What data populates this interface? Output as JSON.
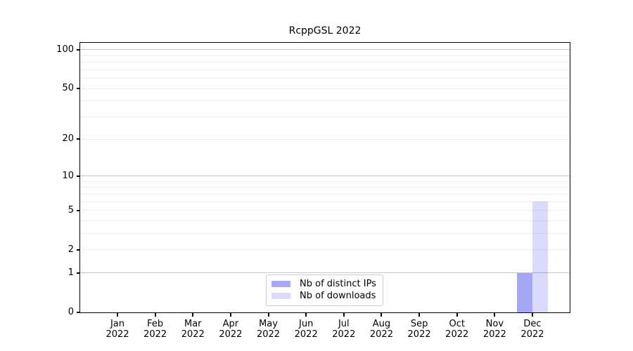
{
  "title": "RcppGSL 2022",
  "chart_data": {
    "type": "bar",
    "title": "RcppGSL 2022",
    "categories": [
      "Jan",
      "Feb",
      "Mar",
      "Apr",
      "May",
      "Jun",
      "Jul",
      "Aug",
      "Sep",
      "Oct",
      "Nov",
      "Dec"
    ],
    "year": "2022",
    "series": [
      {
        "name": "Nb of distinct IPs",
        "fill": "rgba(20,20,240,0.38)",
        "values": [
          0,
          0,
          0,
          0,
          0,
          0,
          0,
          0,
          0,
          0,
          0,
          1
        ]
      },
      {
        "name": "Nb of downloads",
        "fill": "rgba(20,20,240,0.155)",
        "values": [
          0,
          0,
          0,
          0,
          0,
          0,
          0,
          0,
          0,
          0,
          0,
          6
        ]
      }
    ],
    "yscale": "log1p",
    "ylim": [
      0,
      113
    ],
    "yticks": [
      0,
      1,
      2,
      5,
      10,
      20,
      50,
      100
    ],
    "major_gridlines": [
      1,
      10,
      100
    ],
    "minor_gridlines": [
      2,
      3,
      4,
      5,
      6,
      7,
      8,
      9,
      20,
      30,
      40,
      50,
      60,
      70,
      80,
      90
    ],
    "grid": true,
    "legend_position": "bottom-center",
    "xlabel": "",
    "ylabel": ""
  },
  "colors": {
    "bar_distinct_ips": "#a7a7f7",
    "bar_downloads": "#dcdcfa",
    "major_grid": "#c6c6c6",
    "minor_grid": "#ececec",
    "axis": "#000000",
    "legend_border": "#cccccc"
  }
}
